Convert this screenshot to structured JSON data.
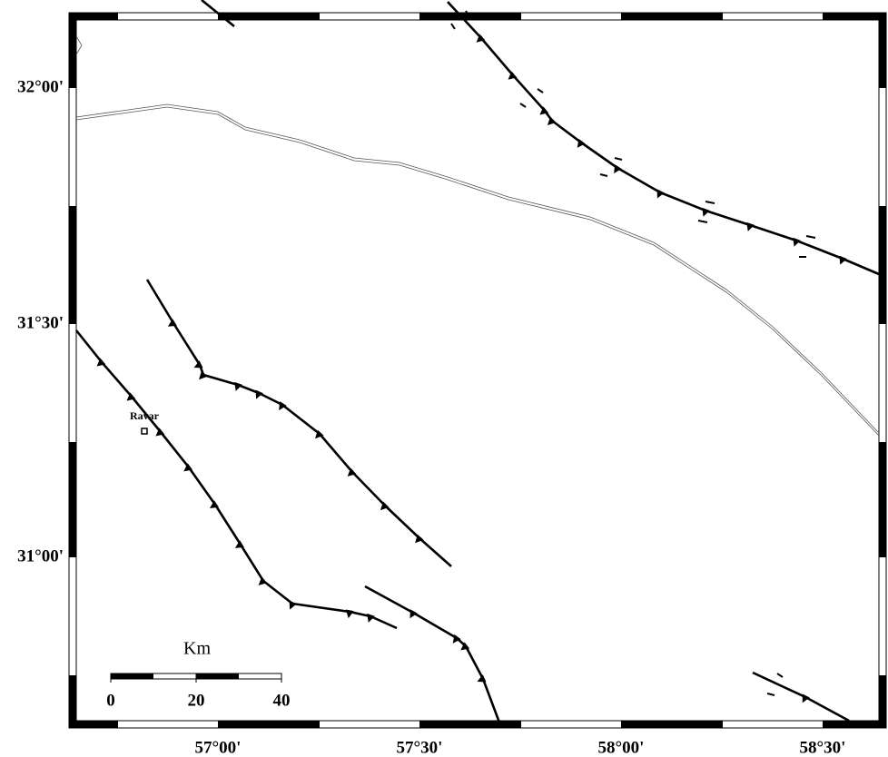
{
  "map": {
    "lat_labels": [
      "32°00'",
      "31°30'",
      "31°00'"
    ],
    "lon_labels": [
      "57°00'",
      "57°30'",
      "58°00'",
      "58°30'"
    ],
    "place": "Ravar",
    "scale": {
      "unit": "Km",
      "labels": [
        "0",
        "20",
        "40"
      ]
    }
  }
}
